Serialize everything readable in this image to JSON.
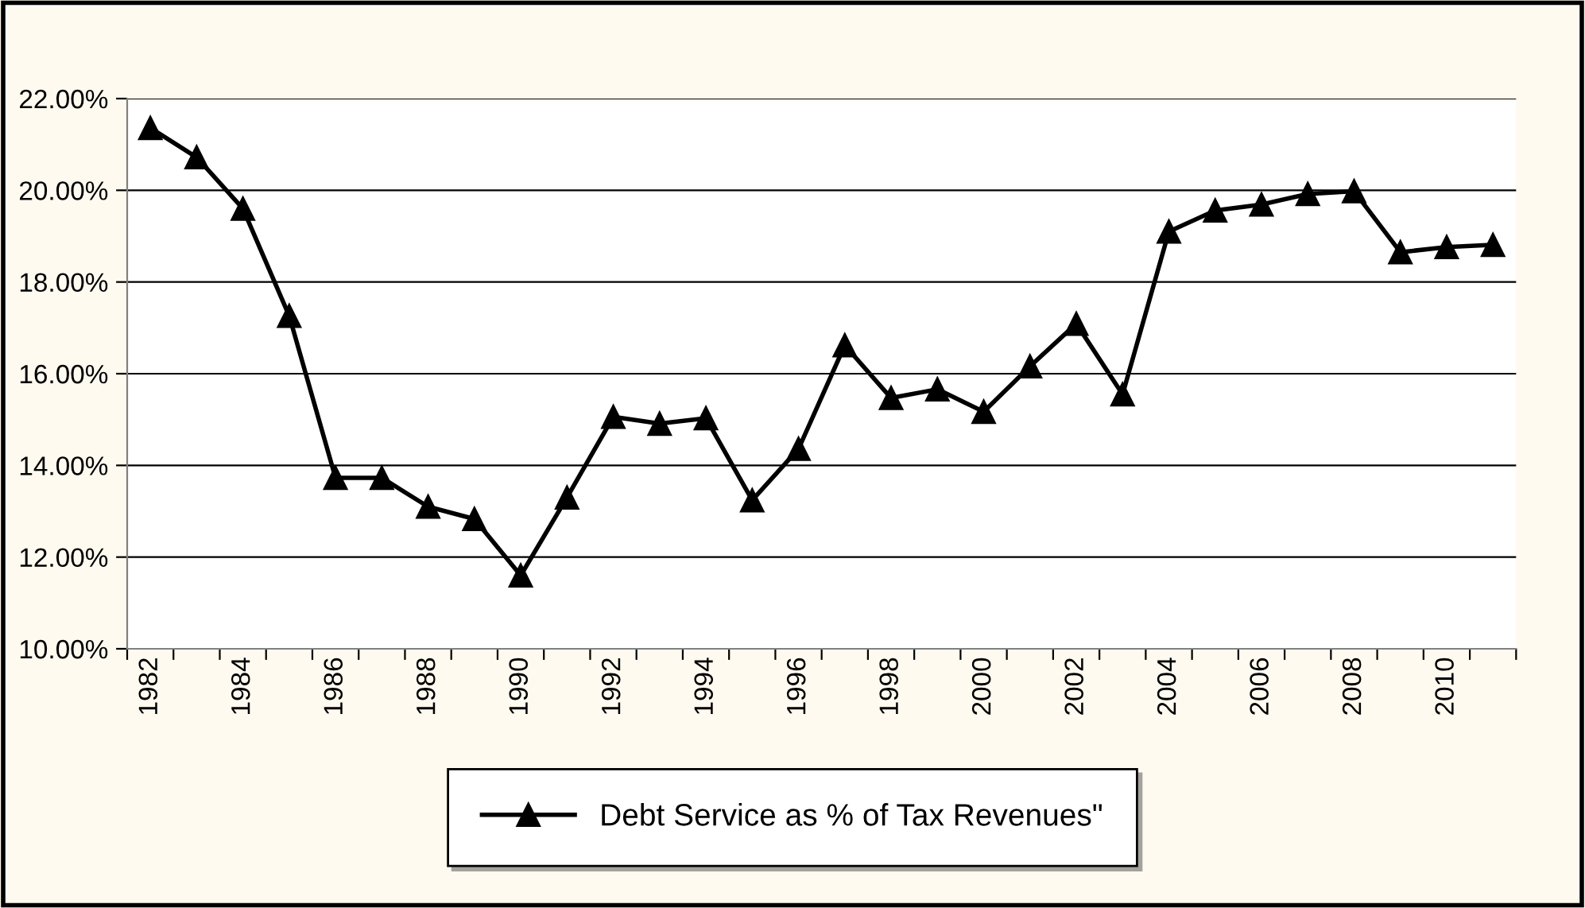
{
  "chart_data": {
    "type": "line",
    "categories": [
      "1982",
      null,
      "1984",
      null,
      "1986",
      null,
      "1988",
      null,
      "1990",
      null,
      "1992",
      null,
      "1994",
      null,
      "1996",
      null,
      "1998",
      null,
      "2000",
      null,
      "2002",
      null,
      "2004",
      null,
      "2006",
      null,
      "2008",
      null,
      "2010",
      null
    ],
    "series": [
      {
        "name": "Debt Service as % of Tax Revenues\"",
        "color": "#000000",
        "values": [
          21.36,
          20.72,
          19.6,
          17.26,
          13.73,
          13.73,
          13.1,
          12.83,
          11.6,
          13.3,
          15.06,
          14.91,
          15.03,
          13.24,
          14.36,
          16.62,
          15.47,
          15.66,
          15.17,
          16.16,
          17.09,
          15.55,
          19.1,
          19.56,
          19.69,
          19.92,
          19.98,
          18.65,
          18.76,
          18.81
        ]
      }
    ],
    "ylim": [
      10,
      22
    ],
    "yticks": [
      {
        "value": 10,
        "label": "10.00%"
      },
      {
        "value": 12,
        "label": "12.00%"
      },
      {
        "value": 14,
        "label": "14.00%"
      },
      {
        "value": 16,
        "label": "16.00%"
      },
      {
        "value": 18,
        "label": "18.00%"
      },
      {
        "value": 20,
        "label": "20.00%"
      },
      {
        "value": 22,
        "label": "22.00%"
      }
    ],
    "grid": "y",
    "legend": "bottom",
    "marker": "triangle",
    "line_style": "solid"
  }
}
